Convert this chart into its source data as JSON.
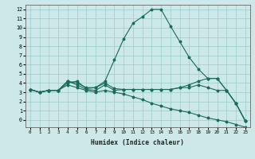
{
  "xlabel": "Humidex (Indice chaleur)",
  "background_color": "#cce8e8",
  "grid_color": "#99cccc",
  "line_color": "#1a6b5a",
  "x_ticks": [
    0,
    1,
    2,
    3,
    4,
    5,
    6,
    7,
    8,
    9,
    10,
    11,
    12,
    13,
    14,
    15,
    16,
    17,
    18,
    19,
    20,
    21,
    22,
    23
  ],
  "y_ticks": [
    0,
    1,
    2,
    3,
    4,
    5,
    6,
    7,
    8,
    9,
    10,
    11,
    12
  ],
  "ylim": [
    -0.8,
    12.5
  ],
  "xlim": [
    -0.5,
    23.5
  ],
  "lines": [
    {
      "x": [
        0,
        1,
        2,
        3,
        4,
        5,
        6,
        7,
        8,
        9,
        10,
        11,
        12,
        13,
        14,
        15,
        16,
        17,
        18,
        19,
        20,
        21,
        22,
        23
      ],
      "y": [
        3.3,
        3.0,
        3.2,
        3.2,
        4.2,
        4.0,
        3.5,
        3.5,
        4.2,
        6.5,
        8.8,
        10.5,
        11.2,
        12.0,
        12.0,
        10.2,
        8.5,
        6.8,
        5.5,
        4.5,
        4.5,
        3.2,
        1.8,
        -0.1
      ]
    },
    {
      "x": [
        0,
        1,
        2,
        3,
        4,
        5,
        6,
        7,
        8,
        9,
        10,
        11,
        12,
        13,
        14,
        15,
        16,
        17,
        18,
        19,
        20,
        21,
        22,
        23
      ],
      "y": [
        3.3,
        3.0,
        3.2,
        3.2,
        4.2,
        3.8,
        3.3,
        3.2,
        3.8,
        3.2,
        3.3,
        3.3,
        3.3,
        3.3,
        3.3,
        3.3,
        3.5,
        3.8,
        4.2,
        4.5,
        4.5,
        3.2,
        1.8,
        -0.1
      ]
    },
    {
      "x": [
        0,
        1,
        2,
        3,
        4,
        5,
        6,
        7,
        8,
        9,
        10,
        11,
        12,
        13,
        14,
        15,
        16,
        17,
        18,
        19,
        20,
        21,
        22,
        23
      ],
      "y": [
        3.3,
        3.0,
        3.2,
        3.2,
        4.0,
        4.2,
        3.4,
        3.5,
        4.0,
        3.4,
        3.3,
        3.3,
        3.3,
        3.3,
        3.3,
        3.3,
        3.5,
        3.5,
        3.8,
        3.5,
        3.2,
        3.2,
        1.8,
        -0.1
      ]
    },
    {
      "x": [
        0,
        1,
        2,
        3,
        4,
        5,
        6,
        7,
        8,
        9,
        10,
        11,
        12,
        13,
        14,
        15,
        16,
        17,
        18,
        19,
        20,
        21,
        22,
        23
      ],
      "y": [
        3.3,
        3.0,
        3.2,
        3.2,
        3.8,
        3.5,
        3.2,
        3.0,
        3.2,
        3.0,
        2.8,
        2.5,
        2.2,
        1.8,
        1.5,
        1.2,
        1.0,
        0.8,
        0.5,
        0.2,
        0.0,
        -0.2,
        -0.5,
        -0.8
      ]
    }
  ]
}
